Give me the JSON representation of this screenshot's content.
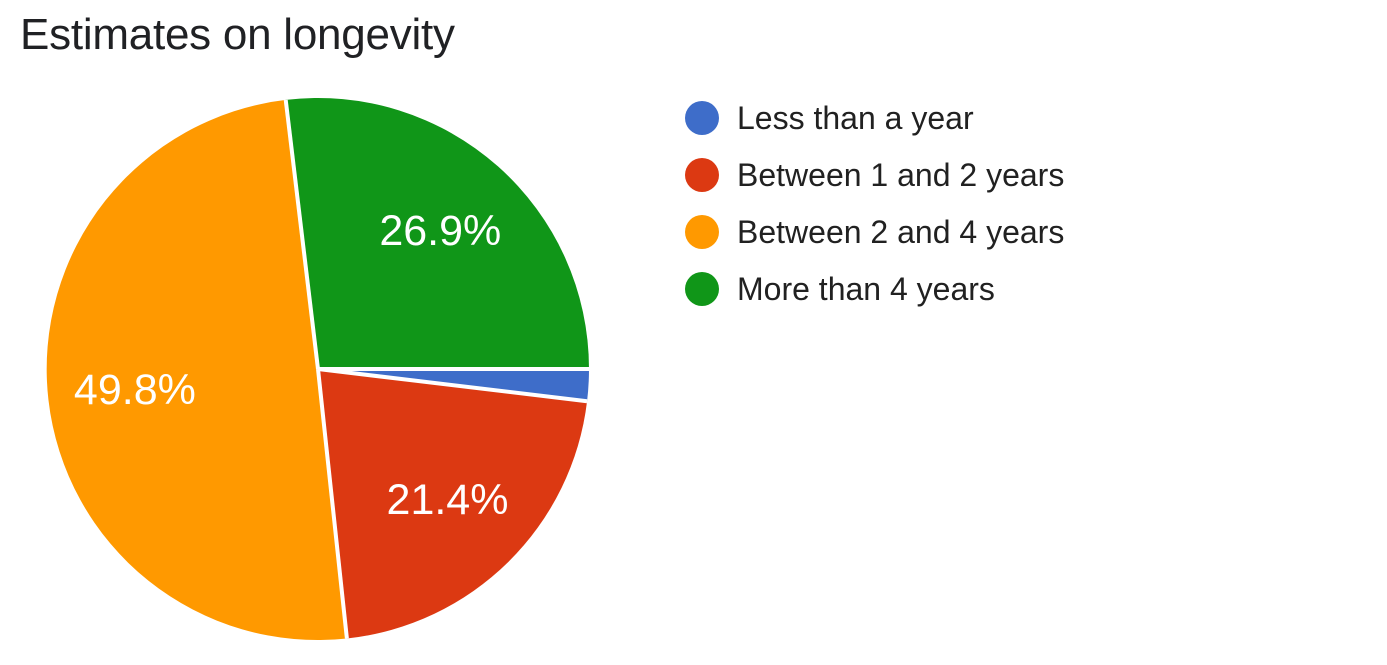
{
  "chart_data": {
    "type": "pie",
    "title": "Estimates on longevity",
    "categories": [
      "Less than a year",
      "Between 1 and 2 years",
      "Between 2 and 4 years",
      "More than 4 years"
    ],
    "values": [
      1.9,
      21.4,
      49.8,
      26.9
    ],
    "slice_labels": [
      "",
      "21.4%",
      "49.8%",
      "26.9%"
    ],
    "colors": [
      "#3E6DC9",
      "#DC3912",
      "#FF9900",
      "#109618"
    ],
    "start_angle_deg": 90,
    "direction": "clockwise",
    "legend_position": "right",
    "background": "#FFFFFF",
    "title_color": "#202124",
    "legend_text_color": "#212121",
    "slice_label_color": "#FFFFFF",
    "divider_color": "#FFFFFF"
  }
}
